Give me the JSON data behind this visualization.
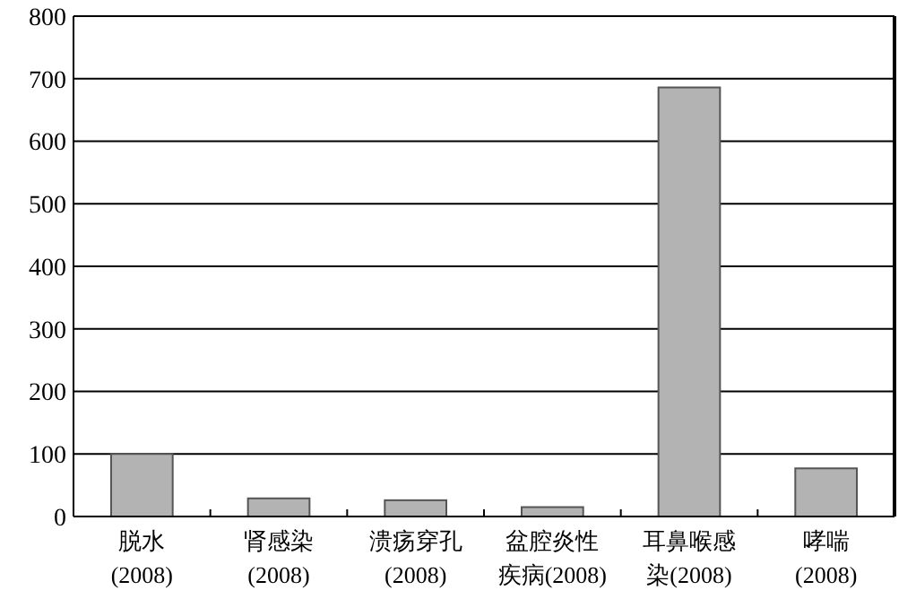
{
  "chart_data": {
    "type": "bar",
    "categories": [
      "脱水(2008)",
      "肾感染(2008)",
      "溃疡穿孔(2008)",
      "盆腔炎性疾病(2008)",
      "耳鼻喉感染(2008)",
      "哮喘(2008)"
    ],
    "values": [
      100,
      29,
      26,
      15,
      686,
      77
    ],
    "color": "#b3b3b3",
    "ylim": [
      0,
      800
    ],
    "yticks": [
      0,
      100,
      200,
      300,
      400,
      500,
      600,
      700,
      800
    ],
    "grid": "y"
  }
}
